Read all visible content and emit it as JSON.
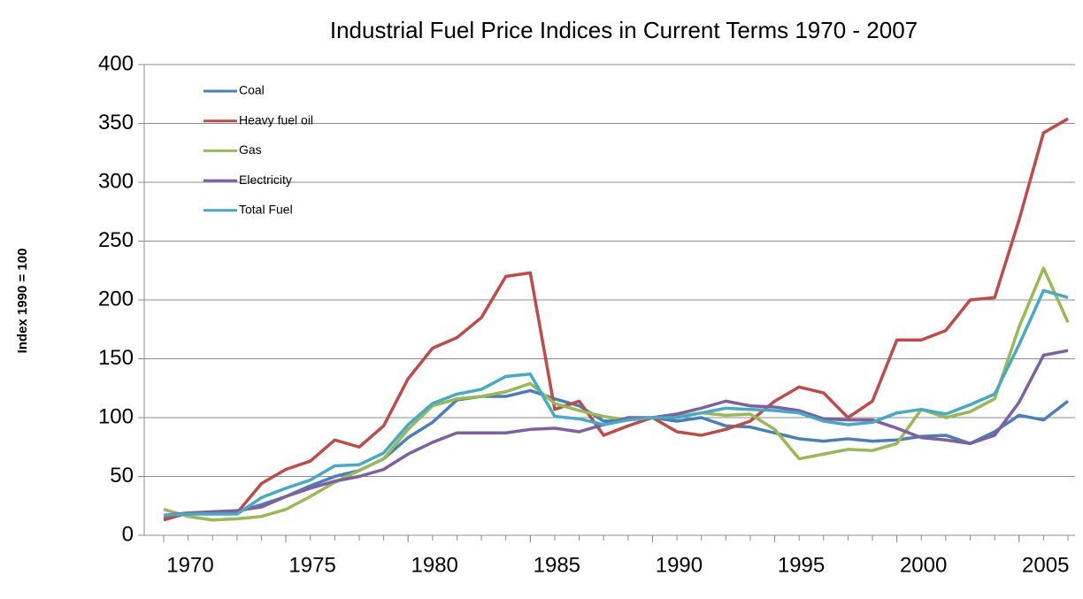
{
  "chart_data": {
    "type": "line",
    "title": "Industrial Fuel Price Indices in Current Terms 1970 - 2007",
    "y_label": "Index 1990 = 100",
    "x": [
      1970,
      1971,
      1972,
      1973,
      1974,
      1975,
      1976,
      1977,
      1978,
      1979,
      1980,
      1981,
      1982,
      1983,
      1984,
      1985,
      1986,
      1987,
      1988,
      1989,
      1990,
      1991,
      1992,
      1993,
      1994,
      1995,
      1996,
      1997,
      1998,
      1999,
      2000,
      2001,
      2002,
      2003,
      2004,
      2005,
      2006,
      2007
    ],
    "xlim": [
      1970,
      2007
    ],
    "xticks": [
      1970,
      1975,
      1980,
      1985,
      1990,
      1995,
      2000,
      2005
    ],
    "ylim": [
      0,
      400
    ],
    "yticks": [
      0,
      50,
      100,
      150,
      200,
      250,
      300,
      350,
      400
    ],
    "grid": true,
    "legend": "top-left",
    "series": [
      {
        "name": "Coal",
        "color": "#4a7ebb",
        "values": [
          15,
          19,
          19,
          20,
          26,
          33,
          42,
          50,
          55,
          65,
          83,
          96,
          115,
          118,
          118,
          123,
          116,
          110,
          97,
          98,
          100,
          97,
          100,
          93,
          92,
          87,
          82,
          80,
          82,
          80,
          81,
          84,
          85,
          78,
          88,
          102,
          98,
          114
        ]
      },
      {
        "name": "Heavy fuel oil",
        "color": "#be4b48",
        "values": [
          13,
          19,
          19,
          19,
          44,
          56,
          63,
          81,
          75,
          93,
          133,
          159,
          168,
          185,
          220,
          223,
          107,
          114,
          85,
          93,
          100,
          88,
          85,
          90,
          97,
          114,
          126,
          121,
          100,
          114,
          166,
          166,
          174,
          200,
          202,
          268,
          342,
          354
        ]
      },
      {
        "name": "Gas",
        "color": "#98b954",
        "values": [
          22,
          16,
          13,
          14,
          16,
          22,
          33,
          45,
          55,
          65,
          90,
          110,
          116,
          118,
          122,
          129,
          112,
          106,
          101,
          98,
          100,
          101,
          104,
          102,
          103,
          90,
          65,
          69,
          73,
          72,
          78,
          107,
          100,
          105,
          116,
          177,
          227,
          181
        ]
      },
      {
        "name": "Electricity",
        "color": "#7d60a0",
        "values": [
          17,
          19,
          20,
          21,
          24,
          33,
          40,
          46,
          50,
          56,
          69,
          79,
          87,
          87,
          87,
          90,
          91,
          88,
          94,
          100,
          100,
          103,
          108,
          114,
          110,
          109,
          106,
          99,
          98,
          98,
          91,
          83,
          81,
          78,
          85,
          113,
          153,
          157
        ]
      },
      {
        "name": "Total Fuel",
        "color": "#46aac5",
        "values": [
          17,
          18,
          18,
          18,
          32,
          40,
          47,
          59,
          60,
          70,
          94,
          112,
          120,
          124,
          135,
          137,
          101,
          99,
          94,
          98,
          100,
          100,
          104,
          108,
          107,
          106,
          104,
          97,
          94,
          96,
          104,
          107,
          103,
          111,
          120,
          162,
          208,
          202
        ]
      }
    ]
  }
}
